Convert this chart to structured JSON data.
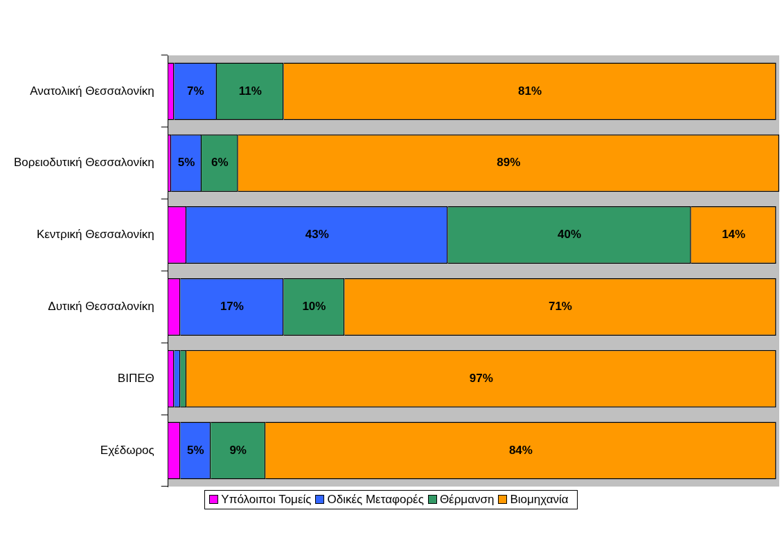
{
  "chart_data": {
    "type": "bar",
    "orientation": "horizontal",
    "stacked": true,
    "categories": [
      "Ανατολική Θεσσαλονίκη",
      "Βορειοδυτική Θεσσαλονίκη",
      "Κεντρική Θεσσαλονίκη",
      "Δυτική Θεσσαλονίκη",
      "ΒΙΠΕΘ",
      "Εχέδωρος"
    ],
    "series": [
      {
        "name": "Υπόλοιποι Τομείς",
        "color": "#ff00ff",
        "values": [
          1,
          0.5,
          3,
          2,
          1,
          2
        ],
        "value_labels": [
          null,
          null,
          null,
          null,
          null,
          null
        ]
      },
      {
        "name": "Οδικές Μεταφορές",
        "color": "#3366ff",
        "values": [
          7,
          5,
          43,
          17,
          1,
          5
        ],
        "value_labels": [
          "7%",
          "5%",
          "43%",
          "17%",
          null,
          "5%"
        ]
      },
      {
        "name": "Θέρμανση",
        "color": "#339966",
        "values": [
          11,
          6,
          40,
          10,
          1,
          9
        ],
        "value_labels": [
          "11%",
          "6%",
          "40%",
          "10%",
          null,
          "9%"
        ]
      },
      {
        "name": "Βιομηχανία",
        "color": "#ff9900",
        "values": [
          81,
          89,
          14,
          71,
          97,
          84
        ],
        "value_labels": [
          "81%",
          "89%",
          "14%",
          "71%",
          "97%",
          "84%"
        ]
      }
    ],
    "xlim": [
      0,
      100.5
    ],
    "tick_labels": "y",
    "grid": false,
    "legend": "bottom"
  }
}
